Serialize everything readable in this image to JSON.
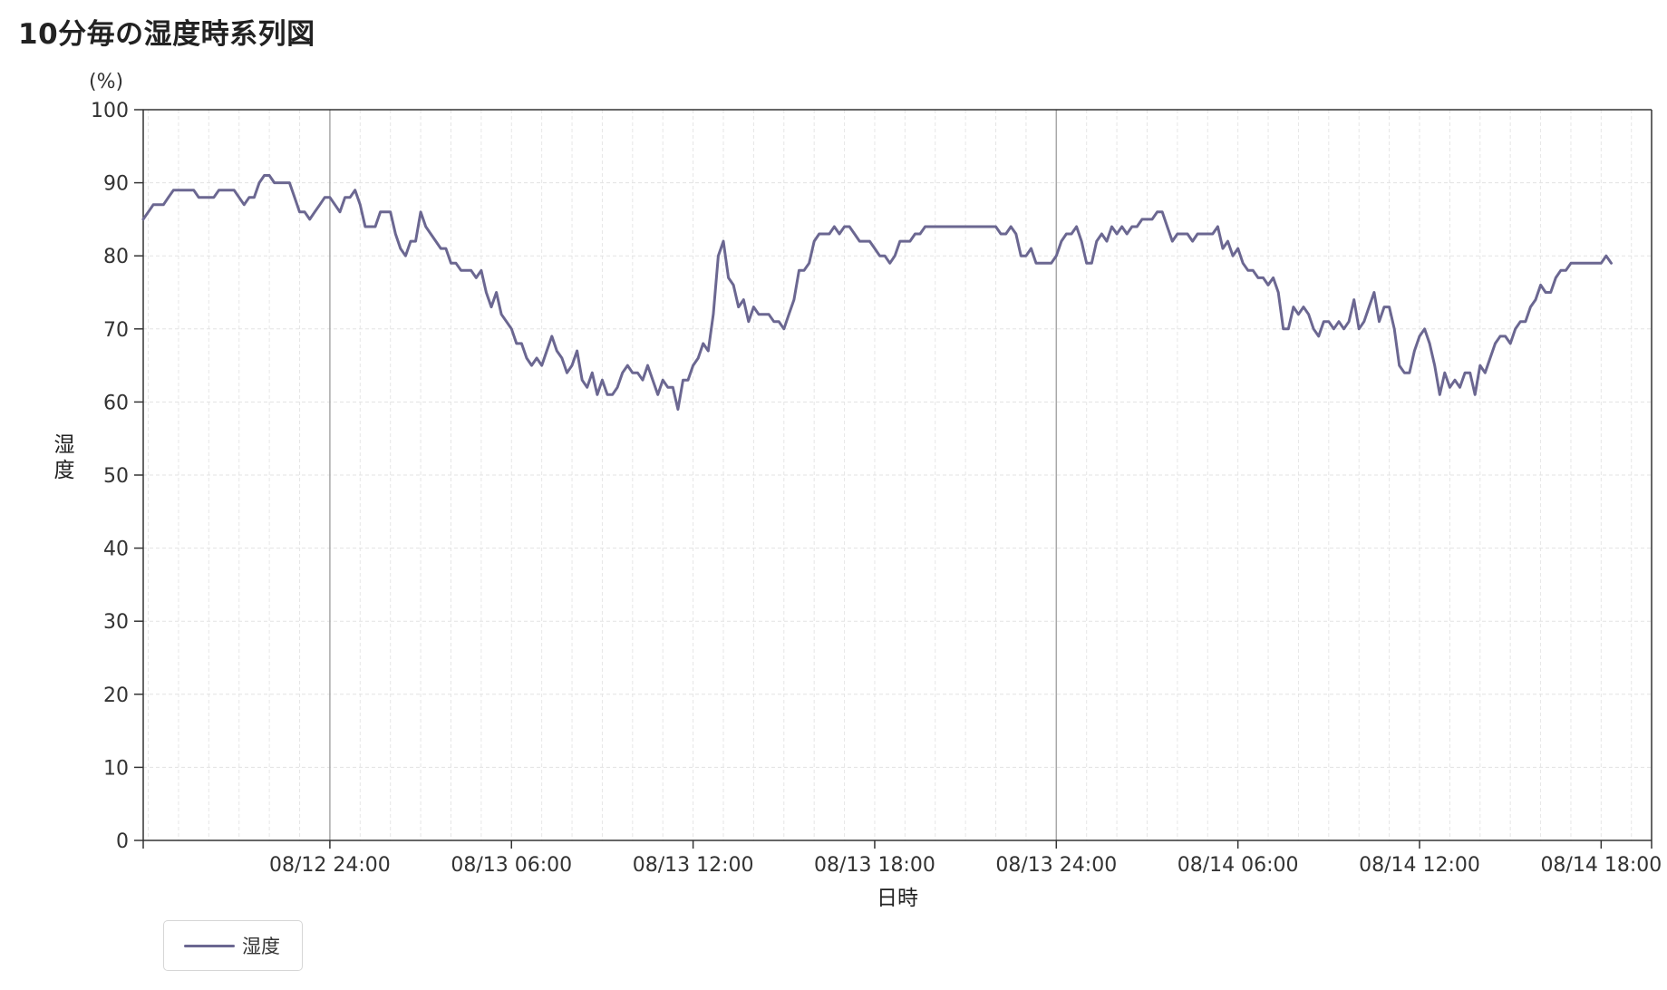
{
  "title": "10分毎の湿度時系列図",
  "legend": {
    "label": "湿度",
    "color": "#6b6791"
  },
  "chart_data": {
    "type": "line",
    "title": "10分毎の湿度時系列図",
    "xlabel": "日時",
    "ylabel": "湿度",
    "yunit": "(%)",
    "ylim": [
      0,
      100
    ],
    "yticks": [
      0,
      10,
      20,
      30,
      40,
      50,
      60,
      70,
      80,
      90,
      100
    ],
    "xlim": [
      "2024-08-12T17:50",
      "2024-08-14T19:40"
    ],
    "xticks": [
      {
        "label": "08/12 24:00",
        "x": "2024-08-13T00:00",
        "major": true
      },
      {
        "label": "08/13 06:00",
        "x": "2024-08-13T06:00",
        "major": false
      },
      {
        "label": "08/13 12:00",
        "x": "2024-08-13T12:00",
        "major": false
      },
      {
        "label": "08/13 18:00",
        "x": "2024-08-13T18:00",
        "major": false
      },
      {
        "label": "08/13 24:00",
        "x": "2024-08-14T00:00",
        "major": true
      },
      {
        "label": "08/14 06:00",
        "x": "2024-08-14T06:00",
        "major": false
      },
      {
        "label": "08/14 12:00",
        "x": "2024-08-14T12:00",
        "major": false
      },
      {
        "label": "08/14 18:00",
        "x": "2024-08-14T18:00",
        "major": false
      }
    ],
    "grid": true,
    "legend_position": "bottom-left",
    "interval_minutes": 10,
    "x_start": "2024-08-12T17:50",
    "series": [
      {
        "name": "湿度",
        "color": "#6b6791",
        "values": [
          85,
          86,
          87,
          87,
          87,
          88,
          89,
          89,
          89,
          89,
          89,
          88,
          88,
          88,
          88,
          89,
          89,
          89,
          89,
          88,
          87,
          88,
          88,
          90,
          91,
          91,
          90,
          90,
          90,
          90,
          88,
          86,
          86,
          85,
          86,
          87,
          88,
          88,
          87,
          86,
          88,
          88,
          89,
          87,
          84,
          84,
          84,
          86,
          86,
          86,
          83,
          81,
          80,
          82,
          82,
          86,
          84,
          83,
          82,
          81,
          81,
          79,
          79,
          78,
          78,
          78,
          77,
          78,
          75,
          73,
          75,
          72,
          71,
          70,
          68,
          68,
          66,
          65,
          66,
          65,
          67,
          69,
          67,
          66,
          64,
          65,
          67,
          63,
          62,
          64,
          61,
          63,
          61,
          61,
          62,
          64,
          65,
          64,
          64,
          63,
          65,
          63,
          61,
          63,
          62,
          62,
          59,
          63,
          63,
          65,
          66,
          68,
          67,
          72,
          80,
          82,
          77,
          76,
          73,
          74,
          71,
          73,
          72,
          72,
          72,
          71,
          71,
          70,
          72,
          74,
          78,
          78,
          79,
          82,
          83,
          83,
          83,
          84,
          83,
          84,
          84,
          83,
          82,
          82,
          82,
          81,
          80,
          80,
          79,
          80,
          82,
          82,
          82,
          83,
          83,
          84,
          84,
          84,
          84,
          84,
          84,
          84,
          84,
          84,
          84,
          84,
          84,
          84,
          84,
          84,
          83,
          83,
          84,
          83,
          80,
          80,
          81,
          79,
          79,
          79,
          79,
          80,
          82,
          83,
          83,
          84,
          82,
          79,
          79,
          82,
          83,
          82,
          84,
          83,
          84,
          83,
          84,
          84,
          85,
          85,
          85,
          86,
          86,
          84,
          82,
          83,
          83,
          83,
          82,
          83,
          83,
          83,
          83,
          84,
          81,
          82,
          80,
          81,
          79,
          78,
          78,
          77,
          77,
          76,
          77,
          75,
          70,
          70,
          73,
          72,
          73,
          72,
          70,
          69,
          71,
          71,
          70,
          71,
          70,
          71,
          74,
          70,
          71,
          73,
          75,
          71,
          73,
          73,
          70,
          65,
          64,
          64,
          67,
          69,
          70,
          68,
          65,
          61,
          64,
          62,
          63,
          62,
          64,
          64,
          61,
          65,
          64,
          66,
          68,
          69,
          69,
          68,
          70,
          71,
          71,
          73,
          74,
          76,
          75,
          75,
          77,
          78,
          78,
          79,
          79,
          79,
          79,
          79,
          79,
          79,
          80,
          79
        ]
      }
    ]
  }
}
